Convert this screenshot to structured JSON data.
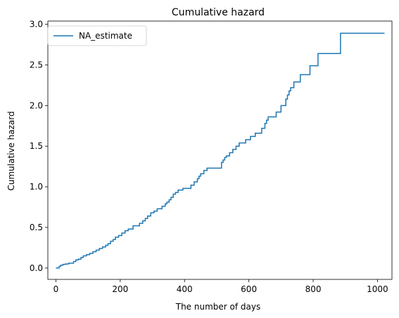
{
  "chart_data": {
    "type": "line",
    "step": true,
    "title": "Cumulative hazard",
    "xlabel": "The number of days",
    "ylabel": "Cumulative hazard",
    "xlim": [
      -25,
      1045
    ],
    "ylim": [
      -0.14,
      3.04
    ],
    "xticks": [
      0,
      200,
      400,
      600,
      800,
      1000
    ],
    "yticks": [
      0.0,
      0.5,
      1.0,
      1.5,
      2.0,
      2.5,
      3.0
    ],
    "xtick_labels": [
      "0",
      "200",
      "400",
      "600",
      "800",
      "1000"
    ],
    "ytick_labels": [
      "0.0",
      "0.5",
      "1.0",
      "1.5",
      "2.0",
      "2.5",
      "3.0"
    ],
    "grid": false,
    "legend": {
      "position": "top-left"
    },
    "color": "#1f77b4",
    "series": [
      {
        "name": "NA_estimate",
        "x": [
          0,
          10,
          15,
          22,
          30,
          40,
          55,
          62,
          70,
          78,
          85,
          95,
          105,
          115,
          125,
          135,
          145,
          155,
          162,
          170,
          178,
          185,
          195,
          205,
          215,
          225,
          240,
          260,
          270,
          278,
          285,
          295,
          305,
          315,
          330,
          340,
          345,
          352,
          358,
          365,
          372,
          380,
          395,
          420,
          430,
          440,
          445,
          450,
          460,
          470,
          480,
          490,
          515,
          520,
          525,
          530,
          540,
          550,
          560,
          570,
          590,
          605,
          620,
          640,
          650,
          655,
          660,
          685,
          700,
          715,
          720,
          725,
          730,
          740,
          760,
          790,
          815,
          885,
          1022
        ],
        "y": [
          0.0,
          0.02,
          0.035,
          0.045,
          0.05,
          0.06,
          0.08,
          0.1,
          0.11,
          0.13,
          0.15,
          0.165,
          0.18,
          0.2,
          0.22,
          0.24,
          0.26,
          0.28,
          0.3,
          0.33,
          0.35,
          0.38,
          0.4,
          0.43,
          0.46,
          0.48,
          0.52,
          0.55,
          0.58,
          0.61,
          0.64,
          0.68,
          0.7,
          0.73,
          0.76,
          0.79,
          0.81,
          0.84,
          0.87,
          0.91,
          0.93,
          0.96,
          0.98,
          1.02,
          1.06,
          1.1,
          1.13,
          1.16,
          1.2,
          1.23,
          1.23,
          1.23,
          1.3,
          1.33,
          1.36,
          1.38,
          1.42,
          1.46,
          1.5,
          1.54,
          1.58,
          1.62,
          1.66,
          1.72,
          1.78,
          1.82,
          1.86,
          1.92,
          2.0,
          2.08,
          2.13,
          2.18,
          2.22,
          2.29,
          2.38,
          2.49,
          2.64,
          2.89,
          2.89
        ]
      }
    ]
  }
}
